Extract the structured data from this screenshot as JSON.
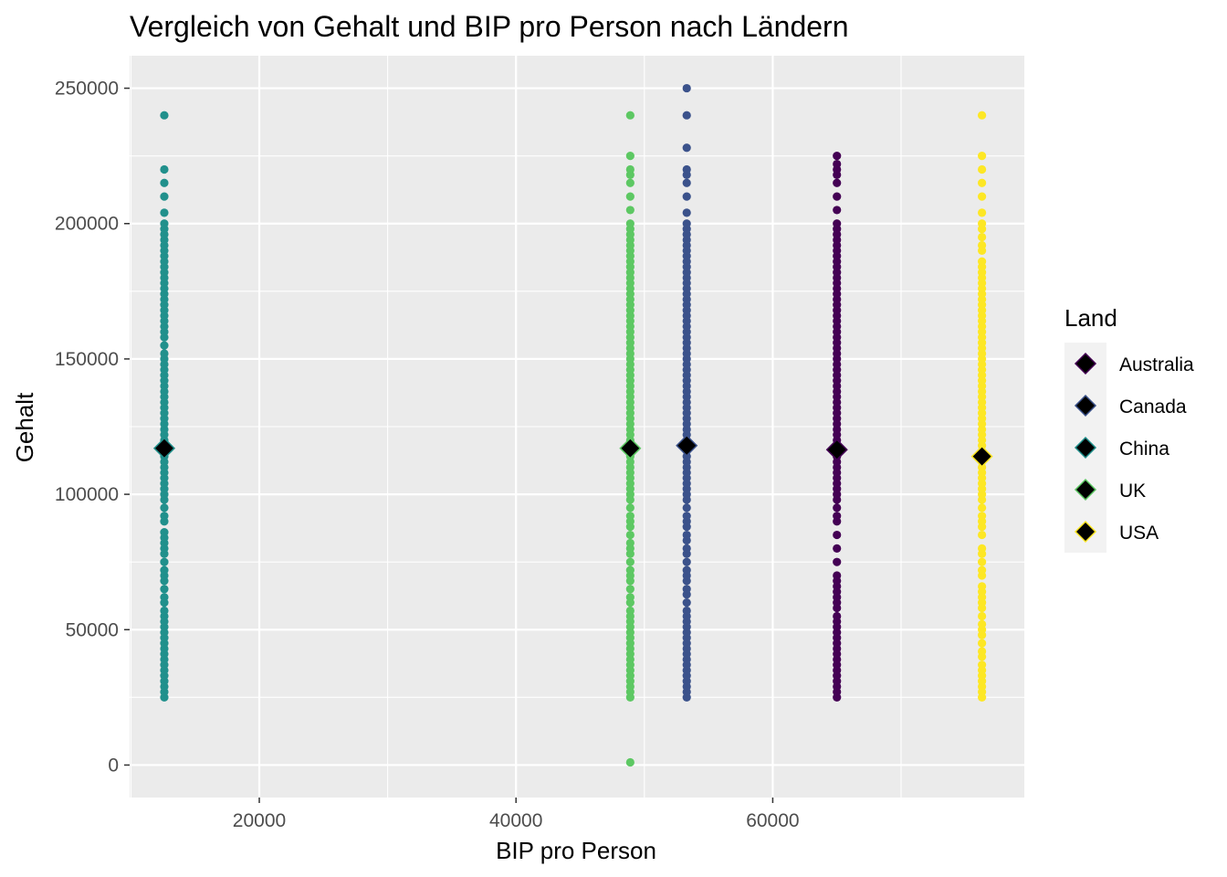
{
  "chart_data": {
    "type": "scatter",
    "title": "Vergleich von Gehalt und BIP pro Person nach Ländern",
    "xlabel": "BIP pro Person",
    "ylabel": "Gehalt",
    "xlim": [
      9900,
      79600
    ],
    "ylim": [
      -12000,
      262000
    ],
    "x_ticks": [
      20000,
      40000,
      60000
    ],
    "x_tick_labels": [
      "20000",
      "40000",
      "60000"
    ],
    "y_ticks": [
      0,
      50000,
      100000,
      150000,
      200000,
      250000
    ],
    "y_tick_labels": [
      "0",
      "50000",
      "100000",
      "150000",
      "200000",
      "250000"
    ],
    "grid": true,
    "legend": {
      "title": "Land",
      "position": "right",
      "entries": [
        "Australia",
        "Canada",
        "China",
        "UK",
        "USA"
      ]
    },
    "series": [
      {
        "name": "Australia",
        "color": "#440154",
        "x": 65000,
        "y": [
          25000,
          27000,
          29000,
          31000,
          33000,
          35000,
          37000,
          39000,
          41000,
          43000,
          45000,
          47000,
          49000,
          51000,
          53000,
          55000,
          58000,
          60000,
          62000,
          64000,
          66000,
          68000,
          70000,
          75000,
          80000,
          85000,
          90000,
          92000,
          95000,
          98000,
          100000,
          102000,
          104000,
          106000,
          108000,
          110000,
          112000,
          114000,
          116000,
          118000,
          120000,
          122000,
          124000,
          126000,
          128000,
          130000,
          132000,
          134000,
          136000,
          138000,
          140000,
          142000,
          144000,
          146000,
          148000,
          150000,
          152000,
          154000,
          156000,
          158000,
          160000,
          162000,
          164000,
          166000,
          168000,
          170000,
          172000,
          174000,
          176000,
          178000,
          180000,
          182000,
          184000,
          186000,
          188000,
          190000,
          192000,
          194000,
          196000,
          198000,
          200000,
          205000,
          210000,
          215000,
          218000,
          220000,
          222000,
          225000
        ],
        "mean": 116500
      },
      {
        "name": "Canada",
        "color": "#3b528b",
        "x": 53300,
        "y": [
          25000,
          27000,
          29000,
          31000,
          33000,
          35000,
          37000,
          39000,
          41000,
          43000,
          45000,
          47000,
          49000,
          51000,
          53000,
          55000,
          57000,
          60000,
          63000,
          65000,
          68000,
          70000,
          72000,
          75000,
          78000,
          80000,
          83000,
          85000,
          88000,
          90000,
          92000,
          95000,
          98000,
          100000,
          102000,
          104000,
          106000,
          108000,
          110000,
          112000,
          114000,
          116000,
          118000,
          120000,
          122000,
          124000,
          126000,
          128000,
          130000,
          132000,
          134000,
          136000,
          138000,
          140000,
          142000,
          144000,
          146000,
          148000,
          150000,
          152000,
          154000,
          156000,
          158000,
          160000,
          162000,
          164000,
          166000,
          168000,
          170000,
          172000,
          174000,
          176000,
          178000,
          180000,
          182000,
          184000,
          186000,
          188000,
          190000,
          192000,
          194000,
          196000,
          198000,
          200000,
          204000,
          210000,
          215000,
          218000,
          220000,
          228000,
          240000,
          250000
        ],
        "mean": 118000
      },
      {
        "name": "China",
        "color": "#21908c",
        "x": 12600,
        "y": [
          25000,
          27000,
          29000,
          31000,
          33000,
          35000,
          37000,
          39000,
          41000,
          43000,
          45000,
          47000,
          49000,
          51000,
          53000,
          55000,
          57000,
          60000,
          62000,
          65000,
          68000,
          70000,
          72000,
          75000,
          78000,
          80000,
          82000,
          84000,
          86000,
          90000,
          92000,
          95000,
          98000,
          100000,
          102000,
          104000,
          106000,
          108000,
          110000,
          112000,
          114000,
          116000,
          118000,
          120000,
          122000,
          124000,
          126000,
          128000,
          130000,
          132000,
          134000,
          136000,
          138000,
          140000,
          142000,
          144000,
          146000,
          148000,
          150000,
          152000,
          155000,
          158000,
          160000,
          162000,
          164000,
          166000,
          168000,
          170000,
          172000,
          174000,
          176000,
          178000,
          180000,
          182000,
          184000,
          186000,
          188000,
          190000,
          192000,
          194000,
          196000,
          198000,
          200000,
          204000,
          210000,
          215000,
          220000,
          240000
        ],
        "mean": 117000
      },
      {
        "name": "UK",
        "color": "#5dc863",
        "x": 48900,
        "y": [
          1000,
          25000,
          27000,
          29000,
          31000,
          33000,
          35000,
          37000,
          39000,
          41000,
          43000,
          45000,
          47000,
          49000,
          51000,
          53000,
          55000,
          57000,
          60000,
          62000,
          65000,
          68000,
          70000,
          72000,
          75000,
          78000,
          80000,
          82000,
          85000,
          88000,
          90000,
          92000,
          95000,
          98000,
          100000,
          102000,
          104000,
          106000,
          108000,
          110000,
          112000,
          114000,
          116000,
          118000,
          120000,
          122000,
          124000,
          126000,
          128000,
          130000,
          132000,
          134000,
          136000,
          138000,
          140000,
          142000,
          144000,
          146000,
          148000,
          150000,
          152000,
          154000,
          156000,
          158000,
          160000,
          162000,
          164000,
          166000,
          168000,
          170000,
          172000,
          174000,
          176000,
          178000,
          180000,
          182000,
          184000,
          186000,
          188000,
          190000,
          192000,
          194000,
          196000,
          198000,
          200000,
          205000,
          210000,
          215000,
          218000,
          220000,
          225000,
          240000
        ],
        "mean": 117000
      },
      {
        "name": "USA",
        "color": "#fde725",
        "x": 76300,
        "y": [
          25000,
          27000,
          29000,
          31000,
          33000,
          35000,
          37000,
          40000,
          42000,
          45000,
          48000,
          50000,
          52000,
          55000,
          58000,
          60000,
          62000,
          64000,
          66000,
          70000,
          72000,
          75000,
          78000,
          80000,
          85000,
          88000,
          90000,
          92000,
          95000,
          98000,
          100000,
          102000,
          104000,
          106000,
          108000,
          110000,
          112000,
          114000,
          116000,
          118000,
          120000,
          122000,
          124000,
          126000,
          128000,
          130000,
          132000,
          134000,
          136000,
          138000,
          140000,
          142000,
          144000,
          146000,
          148000,
          150000,
          152000,
          154000,
          156000,
          158000,
          160000,
          162000,
          164000,
          166000,
          168000,
          170000,
          172000,
          174000,
          176000,
          178000,
          180000,
          182000,
          184000,
          186000,
          190000,
          192000,
          195000,
          198000,
          200000,
          204000,
          210000,
          215000,
          220000,
          225000,
          240000
        ],
        "mean": 114000
      }
    ]
  }
}
